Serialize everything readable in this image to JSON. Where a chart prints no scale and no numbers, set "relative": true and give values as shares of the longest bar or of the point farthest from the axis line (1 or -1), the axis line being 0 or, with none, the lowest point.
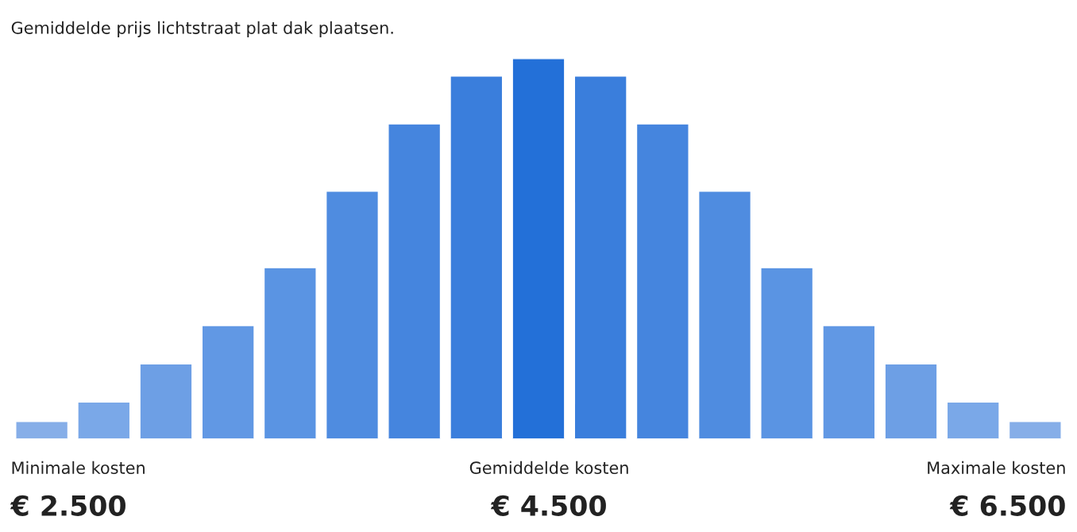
{
  "chart_data": {
    "type": "bar",
    "title": "Gemiddelde prijs lichtstraat plat dak plaatsen.",
    "categories": [
      null,
      null,
      null,
      null,
      null,
      null,
      null,
      null,
      null,
      null,
      null,
      null,
      null,
      null,
      null,
      null,
      null
    ],
    "values": [
      0.046,
      0.097,
      0.197,
      0.298,
      0.45,
      0.651,
      0.828,
      0.954,
      1,
      0.954,
      0.828,
      0.651,
      0.45,
      0.298,
      0.197,
      0.097,
      0.046
    ],
    "colors": [
      "#86aee8",
      "#7aa8e8",
      "#6d9fe5",
      "#6198e4",
      "#5a94e3",
      "#4f8ce0",
      "#4585de",
      "#3a7edc",
      "#2370d8",
      "#3a7edc",
      "#4585de",
      "#4f8ce0",
      "#5a94e3",
      "#6198e4",
      "#6d9fe5",
      "#7aa8e8",
      "#86aee8"
    ],
    "relative": true,
    "annotations": [
      "Minimale kosten",
      "€ 2.500",
      "Gemiddelde kosten",
      "€ 4.500",
      "Maximale kosten",
      "€ 6.500"
    ]
  }
}
